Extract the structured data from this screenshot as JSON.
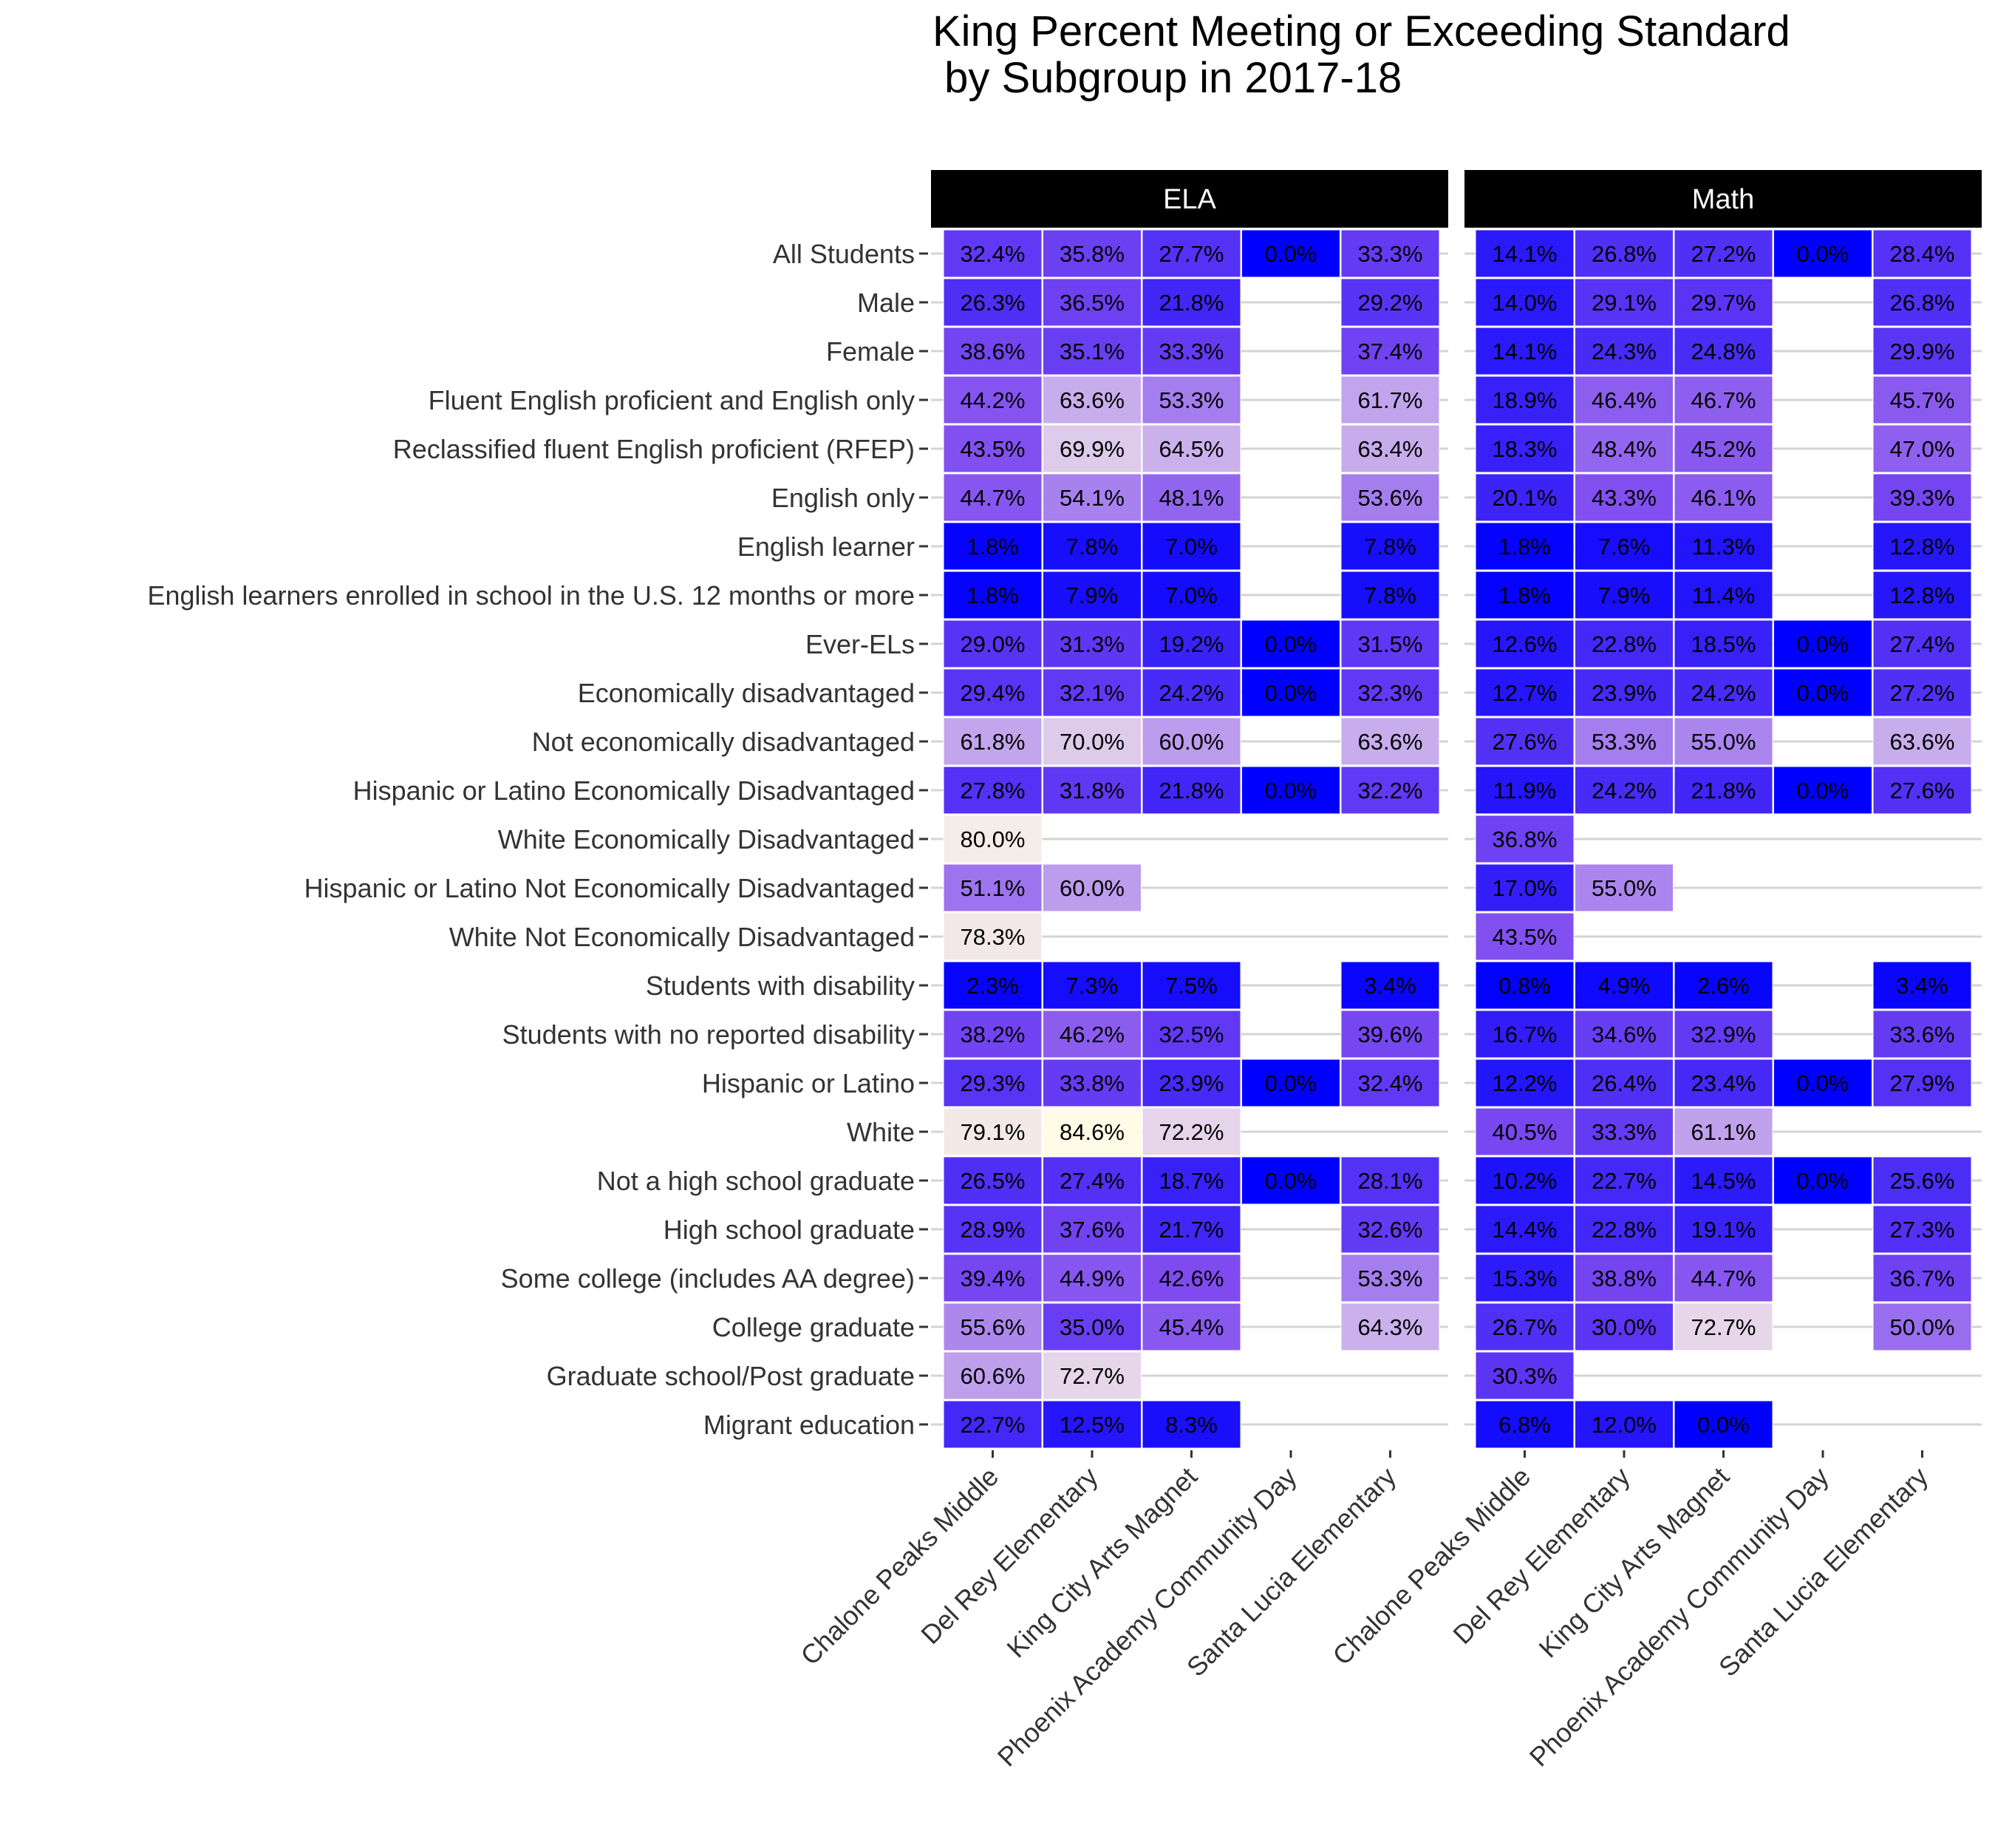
{
  "chart_data": {
    "type": "heatmap",
    "title": "King Percent Meeting or Exceeding Standard\n by Subgroup in 2017-18",
    "facets": [
      "ELA",
      "Math"
    ],
    "schools": [
      "Chalone Peaks Middle",
      "Del Rey Elementary",
      "King City Arts Magnet",
      "Phoenix Academy Community Day",
      "Santa Lucia Elementary"
    ],
    "subgroups": [
      "All Students",
      "Male",
      "Female",
      "Fluent English proficient and English only",
      "Reclassified fluent English proficient (RFEP)",
      "English only",
      "English learner",
      "English learners enrolled in school in the U.S. 12 months or more",
      "Ever-ELs",
      "Economically disadvantaged",
      "Not economically disadvantaged",
      "Hispanic or Latino Economically Disadvantaged",
      "White Economically Disadvantaged",
      "Hispanic or Latino Not Economically Disadvantaged",
      "White Not Economically Disadvantaged",
      "Students with disability",
      "Students with no reported disability",
      "Hispanic or Latino",
      "White",
      "Not a high school graduate",
      "High school graduate",
      "Some college (includes AA degree)",
      "College graduate",
      "Graduate school/Post graduate",
      "Migrant education"
    ],
    "values": {
      "ELA": [
        [
          32.4,
          35.8,
          27.7,
          0.0,
          33.3
        ],
        [
          26.3,
          36.5,
          21.8,
          null,
          29.2
        ],
        [
          38.6,
          35.1,
          33.3,
          null,
          37.4
        ],
        [
          44.2,
          63.6,
          53.3,
          null,
          61.7
        ],
        [
          43.5,
          69.9,
          64.5,
          null,
          63.4
        ],
        [
          44.7,
          54.1,
          48.1,
          null,
          53.6
        ],
        [
          1.8,
          7.8,
          7.0,
          null,
          7.8
        ],
        [
          1.8,
          7.9,
          7.0,
          null,
          7.8
        ],
        [
          29.0,
          31.3,
          19.2,
          0.0,
          31.5
        ],
        [
          29.4,
          32.1,
          24.2,
          0.0,
          32.3
        ],
        [
          61.8,
          70.0,
          60.0,
          null,
          63.6
        ],
        [
          27.8,
          31.8,
          21.8,
          0.0,
          32.2
        ],
        [
          80.0,
          null,
          null,
          null,
          null
        ],
        [
          51.1,
          60.0,
          null,
          null,
          null
        ],
        [
          78.3,
          null,
          null,
          null,
          null
        ],
        [
          2.3,
          7.3,
          7.5,
          null,
          3.4
        ],
        [
          38.2,
          46.2,
          32.5,
          null,
          39.6
        ],
        [
          29.3,
          33.8,
          23.9,
          0.0,
          32.4
        ],
        [
          79.1,
          84.6,
          72.2,
          null,
          null
        ],
        [
          26.5,
          27.4,
          18.7,
          0.0,
          28.1
        ],
        [
          28.9,
          37.6,
          21.7,
          null,
          32.6
        ],
        [
          39.4,
          44.9,
          42.6,
          null,
          53.3
        ],
        [
          55.6,
          35.0,
          45.4,
          null,
          64.3
        ],
        [
          60.6,
          72.7,
          null,
          null,
          null
        ],
        [
          22.7,
          12.5,
          8.3,
          null,
          null
        ]
      ],
      "Math": [
        [
          14.1,
          26.8,
          27.2,
          0.0,
          28.4
        ],
        [
          14.0,
          29.1,
          29.7,
          null,
          26.8
        ],
        [
          14.1,
          24.3,
          24.8,
          null,
          29.9
        ],
        [
          18.9,
          46.4,
          46.7,
          null,
          45.7
        ],
        [
          18.3,
          48.4,
          45.2,
          null,
          47.0
        ],
        [
          20.1,
          43.3,
          46.1,
          null,
          39.3
        ],
        [
          1.8,
          7.6,
          11.3,
          null,
          12.8
        ],
        [
          1.8,
          7.9,
          11.4,
          null,
          12.8
        ],
        [
          12.6,
          22.8,
          18.5,
          0.0,
          27.4
        ],
        [
          12.7,
          23.9,
          24.2,
          0.0,
          27.2
        ],
        [
          27.6,
          53.3,
          55.0,
          null,
          63.6
        ],
        [
          11.9,
          24.2,
          21.8,
          0.0,
          27.6
        ],
        [
          36.8,
          null,
          null,
          null,
          null
        ],
        [
          17.0,
          55.0,
          null,
          null,
          null
        ],
        [
          43.5,
          null,
          null,
          null,
          null
        ],
        [
          0.8,
          4.9,
          2.6,
          null,
          3.4
        ],
        [
          16.7,
          34.6,
          32.9,
          null,
          33.6
        ],
        [
          12.2,
          26.4,
          23.4,
          0.0,
          27.9
        ],
        [
          40.5,
          33.3,
          61.1,
          null,
          null
        ],
        [
          10.2,
          22.7,
          14.5,
          0.0,
          25.6
        ],
        [
          14.4,
          22.8,
          19.1,
          null,
          27.3
        ],
        [
          15.3,
          38.8,
          44.7,
          null,
          36.7
        ],
        [
          26.7,
          30.0,
          72.7,
          null,
          50.0
        ],
        [
          30.3,
          null,
          null,
          null,
          null
        ],
        [
          6.8,
          12.0,
          0.0,
          null,
          null
        ]
      ]
    },
    "color_scale": {
      "low": "#0000ff",
      "mid": "#e6d5ea",
      "high": "#fffde6",
      "range": [
        0,
        85
      ]
    },
    "legend": "none",
    "grid": true
  }
}
